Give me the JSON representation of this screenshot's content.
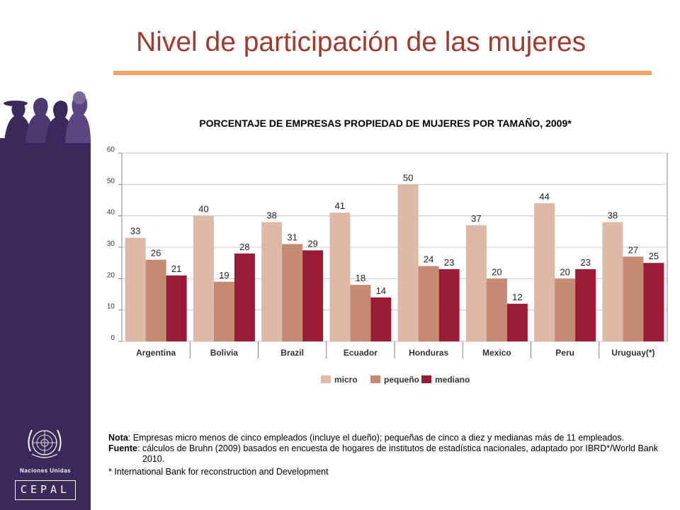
{
  "slide": {
    "title": "Nivel de participación de las mujeres",
    "accent_color": "#a33a2e",
    "rule_color": "#f4a460",
    "sidebar_color": "#3a2a5c"
  },
  "branding": {
    "un_label": "Naciones Unidas",
    "cepal_label": "CEPAL"
  },
  "notes": {
    "nota_label": "Nota",
    "nota_text": "Empresas micro menos de cinco empleados (incluye el dueño); pequeñas de cinco a diez y medianas más de 11 empleados.",
    "fuente_label": "Fuente",
    "fuente_text": "cálculos de Bruhn (2009) basados en encuesta de hogares de institutos de estadística nacionales, adaptado por IBRD*/World Bank 2010.",
    "footnote": "* International Bank for reconstruction and Development"
  },
  "chart_data": {
    "type": "bar",
    "title": "PORCENTAJE DE EMPRESAS PROPIEDAD DE MUJERES POR TAMAÑO, 2009*",
    "categories": [
      "Argentina",
      "Bolivia",
      "Brazil",
      "Ecuador",
      "Honduras",
      "Mexico",
      "Peru",
      "Uruguay(*)"
    ],
    "series": [
      {
        "name": "micro",
        "color": "#deb9a6",
        "values": [
          33,
          40,
          38,
          41,
          50,
          37,
          44,
          38
        ]
      },
      {
        "name": "pequeño",
        "color": "#c48a73",
        "values": [
          26,
          19,
          31,
          18,
          24,
          20,
          20,
          27
        ]
      },
      {
        "name": "mediano",
        "color": "#9a1b35",
        "values": [
          21,
          28,
          29,
          14,
          23,
          12,
          23,
          25
        ]
      }
    ],
    "ylim": [
      0,
      60
    ],
    "yticks": [
      "0",
      "10",
      "20",
      "30",
      "40",
      "50",
      "60"
    ],
    "grid": true,
    "legend": "bottom"
  }
}
